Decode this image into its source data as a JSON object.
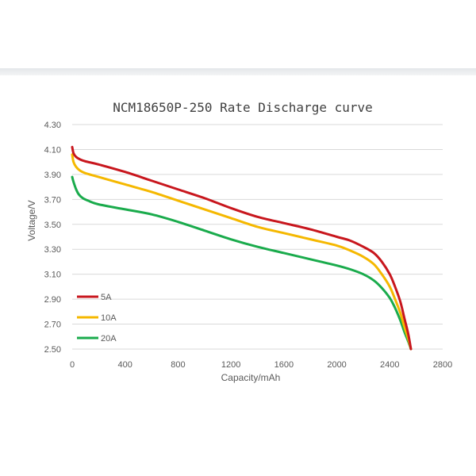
{
  "colors": {
    "background": "#ffffff",
    "grid": "#d9d9d9",
    "text": "#595959",
    "band": "#e4e7ea"
  },
  "chart_data": {
    "type": "line",
    "title": "NCM18650P-250 Rate Discharge curve",
    "xlabel": "Capacity/mAh",
    "ylabel": "Voltage/V",
    "xlim": [
      0,
      2800
    ],
    "ylim": [
      2.5,
      4.3
    ],
    "xticks": [
      "0",
      "400",
      "800",
      "1200",
      "1600",
      "2000",
      "2400",
      "2800"
    ],
    "yticks": [
      "2.50",
      "2.70",
      "2.90",
      "3.10",
      "3.30",
      "3.50",
      "3.70",
      "3.90",
      "4.10",
      "4.30"
    ],
    "grid": "horizontal",
    "legend_position": "bottom-left",
    "series": [
      {
        "name": "5A",
        "color": "#c8161d",
        "x": [
          0,
          10,
          30,
          60,
          100,
          200,
          400,
          600,
          800,
          1000,
          1200,
          1400,
          1600,
          1800,
          2000,
          2100,
          2200,
          2280,
          2340,
          2400,
          2440,
          2480,
          2510,
          2540,
          2560
        ],
        "y": [
          4.12,
          4.07,
          4.04,
          4.02,
          4.005,
          3.98,
          3.92,
          3.85,
          3.78,
          3.71,
          3.63,
          3.56,
          3.51,
          3.46,
          3.4,
          3.37,
          3.32,
          3.27,
          3.2,
          3.1,
          3.0,
          2.88,
          2.75,
          2.62,
          2.5
        ]
      },
      {
        "name": "10A",
        "color": "#f5b800",
        "x": [
          0,
          10,
          30,
          60,
          100,
          200,
          400,
          600,
          800,
          1000,
          1200,
          1400,
          1600,
          1800,
          2000,
          2100,
          2200,
          2280,
          2340,
          2400,
          2440,
          2480,
          2510,
          2540,
          2560
        ],
        "y": [
          4.06,
          4.0,
          3.96,
          3.93,
          3.91,
          3.88,
          3.82,
          3.76,
          3.69,
          3.62,
          3.55,
          3.48,
          3.43,
          3.38,
          3.33,
          3.29,
          3.24,
          3.18,
          3.1,
          3.0,
          2.9,
          2.79,
          2.68,
          2.58,
          2.5
        ]
      },
      {
        "name": "20A",
        "color": "#1aab4c",
        "x": [
          0,
          10,
          30,
          50,
          80,
          120,
          200,
          400,
          600,
          800,
          1000,
          1200,
          1400,
          1600,
          1800,
          2000,
          2100,
          2200,
          2280,
          2340,
          2400,
          2440,
          2480,
          2510,
          2540,
          2560
        ],
        "y": [
          3.88,
          3.84,
          3.78,
          3.74,
          3.71,
          3.69,
          3.66,
          3.62,
          3.58,
          3.52,
          3.45,
          3.38,
          3.32,
          3.27,
          3.22,
          3.17,
          3.14,
          3.1,
          3.05,
          2.99,
          2.91,
          2.83,
          2.73,
          2.64,
          2.56,
          2.5
        ]
      }
    ]
  }
}
